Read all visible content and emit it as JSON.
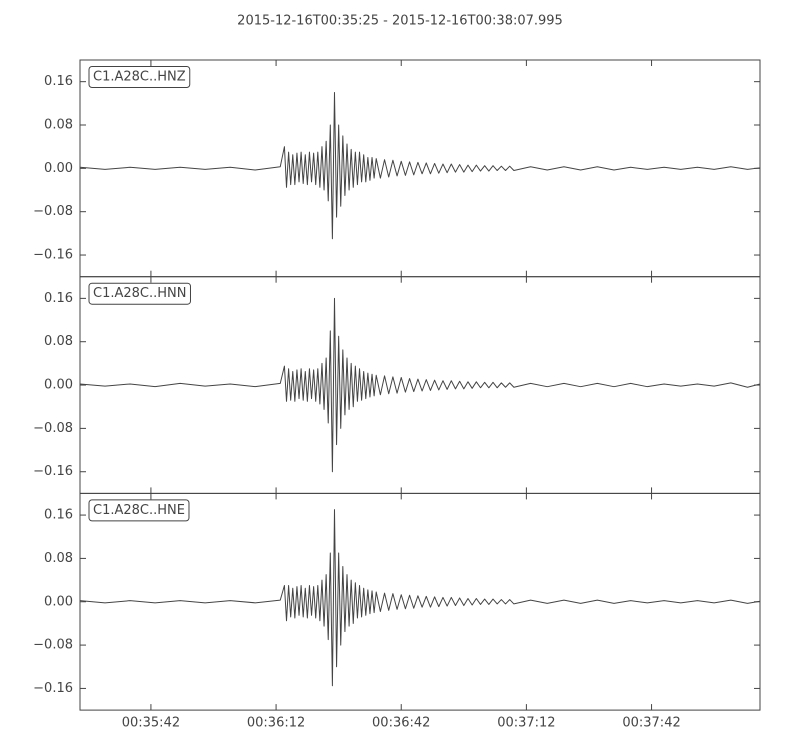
{
  "title": "2015-12-16T00:35:25  -  2015-12-16T00:38:07.995",
  "chart_data": [
    {
      "type": "line",
      "x": [
        2125,
        2131,
        2137,
        2143,
        2149,
        2155,
        2161,
        2167,
        2173,
        2174,
        2174.5,
        2175,
        2175.5,
        2176,
        2176.5,
        2177,
        2177.5,
        2178,
        2178.5,
        2179,
        2179.5,
        2180,
        2180.5,
        2181,
        2181.5,
        2182,
        2182.5,
        2183,
        2183.5,
        2184,
        2184.5,
        2185,
        2185.5,
        2186,
        2186.5,
        2187,
        2187.5,
        2188,
        2188.5,
        2189,
        2189.5,
        2190,
        2190.5,
        2191,
        2191.5,
        2192,
        2192.5,
        2193,
        2193.5,
        2194,
        2194.5,
        2195,
        2195.5,
        2196,
        2197,
        2198,
        2199,
        2200,
        2201,
        2202,
        2203,
        2204,
        2205,
        2206,
        2207,
        2208,
        2209,
        2210,
        2211,
        2212,
        2213,
        2214,
        2215,
        2216,
        2217,
        2218,
        2219,
        2220,
        2221,
        2222,
        2223,
        2224,
        2225,
        2226,
        2227,
        2228,
        2229,
        2233,
        2237,
        2241,
        2245,
        2249,
        2253,
        2257,
        2261,
        2265,
        2269,
        2273,
        2277,
        2281,
        2285,
        2287.995
      ],
      "series": [
        {
          "name": "C1.A28C..HNZ",
          "color": "#444444",
          "values": [
            0.002,
            -0.002,
            0.002,
            -0.002,
            0.002,
            -0.002,
            0.002,
            -0.003,
            0.003,
            0.04,
            -0.035,
            0.03,
            -0.03,
            0.025,
            -0.03,
            0.028,
            -0.025,
            0.03,
            -0.028,
            0.025,
            -0.03,
            0.03,
            -0.025,
            0.028,
            -0.03,
            0.03,
            -0.035,
            0.04,
            -0.04,
            0.05,
            -0.06,
            0.08,
            -0.13,
            0.14,
            -0.09,
            0.08,
            -0.07,
            0.06,
            -0.05,
            0.045,
            -0.04,
            0.035,
            -0.035,
            0.03,
            -0.03,
            0.03,
            -0.025,
            0.025,
            -0.025,
            0.02,
            -0.022,
            0.02,
            -0.018,
            0.018,
            -0.018,
            0.016,
            -0.016,
            0.015,
            -0.014,
            0.013,
            -0.013,
            0.012,
            -0.012,
            0.011,
            -0.01,
            0.01,
            -0.01,
            0.009,
            -0.009,
            0.008,
            -0.008,
            0.008,
            -0.007,
            0.007,
            -0.007,
            0.006,
            -0.006,
            0.006,
            -0.005,
            0.005,
            -0.005,
            0.005,
            -0.004,
            0.004,
            -0.004,
            0.004,
            -0.004,
            0.003,
            -0.003,
            0.003,
            -0.003,
            0.003,
            -0.003,
            0.002,
            -0.002,
            0.002,
            -0.002,
            0.002,
            -0.002,
            0.003,
            -0.002,
            0.001
          ]
        }
      ],
      "xlim": [
        2125,
        2287.995
      ],
      "ylim": [
        -0.2,
        0.2
      ],
      "xticks": [
        2142,
        2172,
        2202,
        2232,
        2262
      ],
      "yticks": [
        {
          "value": -0.16,
          "label": "−0.16"
        },
        {
          "value": -0.08,
          "label": "−0.08"
        },
        {
          "value": 0,
          "label": "0.00"
        },
        0.08,
        0.16
      ]
    },
    {
      "type": "line",
      "x": [
        2125,
        2131,
        2137,
        2143,
        2149,
        2155,
        2161,
        2167,
        2173,
        2174,
        2174.5,
        2175,
        2175.5,
        2176,
        2176.5,
        2177,
        2177.5,
        2178,
        2178.5,
        2179,
        2179.5,
        2180,
        2180.5,
        2181,
        2181.5,
        2182,
        2182.5,
        2183,
        2183.5,
        2184,
        2184.5,
        2185,
        2185.5,
        2186,
        2186.5,
        2187,
        2187.5,
        2188,
        2188.5,
        2189,
        2189.5,
        2190,
        2190.5,
        2191,
        2191.5,
        2192,
        2192.5,
        2193,
        2193.5,
        2194,
        2194.5,
        2195,
        2195.5,
        2196,
        2197,
        2198,
        2199,
        2200,
        2201,
        2202,
        2203,
        2204,
        2205,
        2206,
        2207,
        2208,
        2209,
        2210,
        2211,
        2212,
        2213,
        2214,
        2215,
        2216,
        2217,
        2218,
        2219,
        2220,
        2221,
        2222,
        2223,
        2224,
        2225,
        2226,
        2227,
        2228,
        2229,
        2233,
        2237,
        2241,
        2245,
        2249,
        2253,
        2257,
        2261,
        2265,
        2269,
        2273,
        2277,
        2281,
        2285,
        2287.995
      ],
      "series": [
        {
          "name": "C1.A28C..HNN",
          "color": "#444444",
          "values": [
            0.002,
            -0.002,
            0.002,
            -0.003,
            0.003,
            -0.002,
            0.002,
            -0.003,
            0.003,
            0.035,
            -0.03,
            0.03,
            -0.028,
            0.025,
            -0.03,
            0.028,
            -0.025,
            0.03,
            -0.028,
            0.025,
            -0.03,
            0.03,
            -0.025,
            0.028,
            -0.03,
            0.03,
            -0.035,
            0.04,
            -0.045,
            0.05,
            -0.07,
            0.1,
            -0.16,
            0.16,
            -0.11,
            0.09,
            -0.08,
            0.065,
            -0.055,
            0.05,
            -0.045,
            0.04,
            -0.04,
            0.035,
            -0.03,
            0.03,
            -0.028,
            0.025,
            -0.025,
            0.022,
            -0.022,
            0.02,
            -0.02,
            0.018,
            -0.018,
            0.017,
            -0.016,
            0.015,
            -0.015,
            0.014,
            -0.013,
            0.012,
            -0.012,
            0.011,
            -0.011,
            0.01,
            -0.01,
            0.009,
            -0.009,
            0.008,
            -0.008,
            0.008,
            -0.007,
            0.007,
            -0.007,
            0.006,
            -0.006,
            0.006,
            -0.005,
            0.005,
            -0.005,
            0.005,
            -0.005,
            0.004,
            -0.004,
            0.004,
            -0.004,
            0.003,
            -0.003,
            0.003,
            -0.003,
            0.003,
            -0.003,
            0.003,
            -0.003,
            0.002,
            -0.002,
            0.002,
            -0.002,
            0.004,
            -0.004,
            0.002
          ]
        }
      ],
      "xlim": [
        2125,
        2287.995
      ],
      "ylim": [
        -0.2,
        0.2
      ],
      "xticks": [
        2142,
        2172,
        2202,
        2232,
        2262
      ],
      "yticks": [
        {
          "value": -0.16,
          "label": "−0.16"
        },
        {
          "value": -0.08,
          "label": "−0.08"
        },
        {
          "value": 0,
          "label": "0.00"
        },
        0.08,
        0.16
      ]
    },
    {
      "type": "line",
      "x": [
        2125,
        2131,
        2137,
        2143,
        2149,
        2155,
        2161,
        2167,
        2173,
        2174,
        2174.5,
        2175,
        2175.5,
        2176,
        2176.5,
        2177,
        2177.5,
        2178,
        2178.5,
        2179,
        2179.5,
        2180,
        2180.5,
        2181,
        2181.5,
        2182,
        2182.5,
        2183,
        2183.5,
        2184,
        2184.5,
        2185,
        2185.5,
        2186,
        2186.5,
        2187,
        2187.5,
        2188,
        2188.5,
        2189,
        2189.5,
        2190,
        2190.5,
        2191,
        2191.5,
        2192,
        2192.5,
        2193,
        2193.5,
        2194,
        2194.5,
        2195,
        2195.5,
        2196,
        2197,
        2198,
        2199,
        2200,
        2201,
        2202,
        2203,
        2204,
        2205,
        2206,
        2207,
        2208,
        2209,
        2210,
        2211,
        2212,
        2213,
        2214,
        2215,
        2216,
        2217,
        2218,
        2219,
        2220,
        2221,
        2222,
        2223,
        2224,
        2225,
        2226,
        2227,
        2228,
        2229,
        2233,
        2237,
        2241,
        2245,
        2249,
        2253,
        2257,
        2261,
        2265,
        2269,
        2273,
        2277,
        2281,
        2285,
        2287.995
      ],
      "series": [
        {
          "name": "C1.A28C..HNE",
          "color": "#444444",
          "values": [
            0.002,
            -0.002,
            0.002,
            -0.002,
            0.002,
            -0.002,
            0.002,
            -0.002,
            0.003,
            0.03,
            -0.035,
            0.03,
            -0.028,
            0.025,
            -0.03,
            0.028,
            -0.025,
            0.03,
            -0.028,
            0.025,
            -0.03,
            0.03,
            -0.025,
            0.028,
            -0.03,
            0.03,
            -0.035,
            0.04,
            -0.045,
            0.05,
            -0.07,
            0.09,
            -0.155,
            0.17,
            -0.12,
            0.09,
            -0.08,
            0.065,
            -0.055,
            0.05,
            -0.045,
            0.04,
            -0.04,
            0.035,
            -0.03,
            0.03,
            -0.028,
            0.025,
            -0.025,
            0.022,
            -0.022,
            0.02,
            -0.02,
            0.018,
            -0.018,
            0.016,
            -0.016,
            0.015,
            -0.014,
            0.013,
            -0.013,
            0.012,
            -0.012,
            0.011,
            -0.01,
            0.01,
            -0.01,
            0.009,
            -0.009,
            0.008,
            -0.008,
            0.008,
            -0.007,
            0.007,
            -0.007,
            0.006,
            -0.006,
            0.006,
            -0.005,
            0.005,
            -0.005,
            0.005,
            -0.004,
            0.004,
            -0.004,
            0.004,
            -0.004,
            0.003,
            -0.003,
            0.003,
            -0.003,
            0.003,
            -0.003,
            0.002,
            -0.002,
            0.002,
            -0.002,
            0.002,
            -0.002,
            0.003,
            -0.003,
            0.001
          ]
        }
      ],
      "xlim": [
        2125,
        2287.995
      ],
      "ylim": [
        -0.2,
        0.2
      ],
      "xticks": [
        {
          "value": 2142,
          "label": "00:35:42"
        },
        {
          "value": 2172,
          "label": "00:36:12"
        },
        {
          "value": 2202,
          "label": "00:36:42"
        },
        {
          "value": 2232,
          "label": "00:37:12"
        },
        {
          "value": 2262,
          "label": "00:37:42"
        }
      ],
      "yticks": [
        {
          "value": -0.16,
          "label": "−0.16"
        },
        {
          "value": -0.08,
          "label": "−0.08"
        },
        {
          "value": 0,
          "label": "0.00"
        },
        0.08,
        0.16
      ]
    }
  ]
}
